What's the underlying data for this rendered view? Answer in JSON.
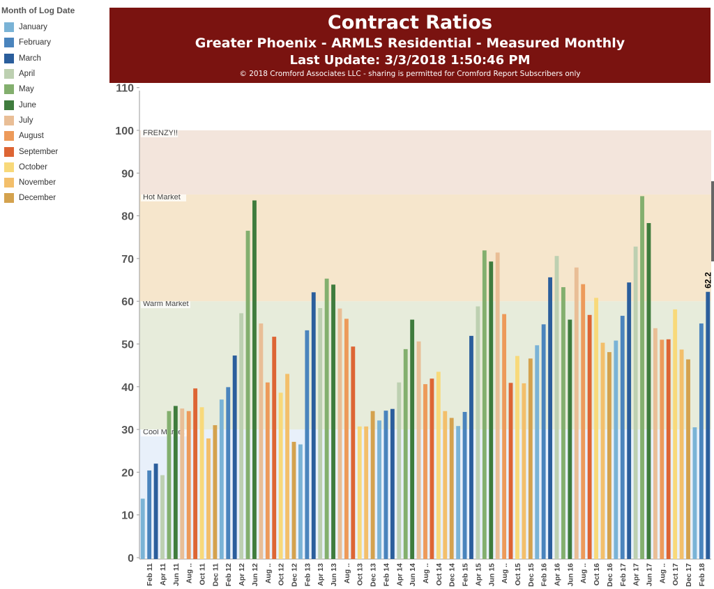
{
  "legend": {
    "title": "Month of Log Date",
    "items": [
      {
        "label": "January",
        "color": "#7ab3d6"
      },
      {
        "label": "February",
        "color": "#4a84bd"
      },
      {
        "label": "March",
        "color": "#2b5e9c"
      },
      {
        "label": "April",
        "color": "#bdd0b1"
      },
      {
        "label": "May",
        "color": "#83af6e"
      },
      {
        "label": "June",
        "color": "#3f7c3d"
      },
      {
        "label": "July",
        "color": "#e9be96"
      },
      {
        "label": "August",
        "color": "#ed9a5a"
      },
      {
        "label": "September",
        "color": "#dd6534"
      },
      {
        "label": "October",
        "color": "#f8d97a"
      },
      {
        "label": "November",
        "color": "#f3bf6b"
      },
      {
        "label": "December",
        "color": "#d4a24e"
      }
    ]
  },
  "header": {
    "title": "Contract Ratios",
    "subtitle": "Greater Phoenix - ARMLS Residential - Measured Monthly",
    "update": "Last Update: 3/3/2018 1:50:46 PM",
    "copyright": "© 2018 Cromford Associates LLC - sharing is permitted for Cromford Report Subscribers only"
  },
  "chart_data": {
    "type": "bar",
    "ylim": [
      0,
      110
    ],
    "yticks": [
      0,
      10,
      20,
      30,
      40,
      50,
      60,
      70,
      80,
      90,
      100,
      110
    ],
    "start_month": "Jan 11",
    "values": [
      13.8,
      20.4,
      22.0,
      19.3,
      34.3,
      35.5,
      34.9,
      34.3,
      39.6,
      35.2,
      27.9,
      31.0,
      37.0,
      39.9,
      47.3,
      57.2,
      76.5,
      83.6,
      54.8,
      41.0,
      51.7,
      38.6,
      43.0,
      27.1,
      26.5,
      53.2,
      62.1,
      58.4,
      65.3,
      63.9,
      58.3,
      55.9,
      49.4,
      30.7,
      30.7,
      34.3,
      32.1,
      34.4,
      34.8,
      41.0,
      48.8,
      55.7,
      50.6,
      40.6,
      41.9,
      43.5,
      34.3,
      32.7,
      30.8,
      34.1,
      51.9,
      58.8,
      71.9,
      69.3,
      71.4,
      57.0,
      40.9,
      47.2,
      40.8,
      46.6,
      49.7,
      54.6,
      65.6,
      70.6,
      63.3,
      55.7,
      67.9,
      64.0,
      56.8,
      60.8,
      50.3,
      48.1,
      50.8,
      56.6,
      64.4,
      72.8,
      84.6,
      78.3,
      53.7,
      51.0,
      51.1,
      58.1,
      48.7,
      46.4,
      30.5,
      54.8,
      62.2
    ],
    "tick_labels": [
      "Feb 11",
      "Apr 11",
      "Jun 11",
      "Aug ..",
      "Oct 11",
      "Dec 11",
      "Feb 12",
      "Apr 12",
      "Jun 12",
      "Aug ..",
      "Oct 12",
      "Dec 12",
      "Feb 13",
      "Apr 13",
      "Jun 13",
      "Aug ..",
      "Oct 13",
      "Dec 13",
      "Feb 14",
      "Apr 14",
      "Jun 14",
      "Aug ..",
      "Oct 14",
      "Dec 14",
      "Feb 15",
      "Apr 15",
      "Jun 15",
      "Aug ..",
      "Oct 15",
      "Dec 15",
      "Feb 16",
      "Apr 16",
      "Jun 16",
      "Aug ..",
      "Oct 16",
      "Dec 16",
      "Feb 17",
      "Apr 17",
      "Jun 17",
      "Aug ..",
      "Oct 17",
      "Dec 17",
      "Feb 18"
    ],
    "zones": [
      {
        "label": "Cool Market",
        "from": 0,
        "to": 30,
        "color": "#e8f0fa"
      },
      {
        "label": "Warm Market",
        "from": 30,
        "to": 60,
        "color": "#e7ecdb"
      },
      {
        "label": "Hot Market",
        "from": 60,
        "to": 85,
        "color": "#f6e6cc"
      },
      {
        "label": "FRENZY!!",
        "from": 85,
        "to": 100,
        "color": "#f3e5dc"
      }
    ],
    "data_label": "62.2"
  }
}
